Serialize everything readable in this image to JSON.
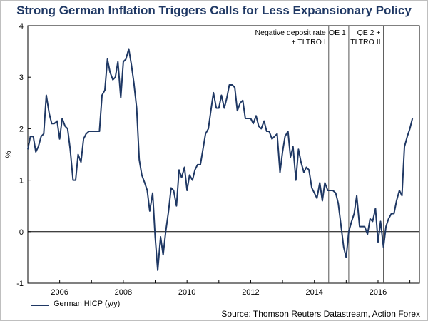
{
  "chart_data": {
    "type": "line",
    "title": "Strong German Inflation Triggers Calls for Less Expansionary Policy",
    "ylabel": "%",
    "xlabel": "",
    "ylim": [
      -1,
      4
    ],
    "xlim": [
      2005.0,
      2017.3
    ],
    "yticks": [
      -1,
      0,
      1,
      2,
      3,
      4
    ],
    "xticks": [
      {
        "label": "2006",
        "value": 2006
      },
      {
        "label": "2008",
        "value": 2008
      },
      {
        "label": "2010",
        "value": 2010
      },
      {
        "label": "2012",
        "value": 2012
      },
      {
        "label": "2014",
        "value": 2014
      },
      {
        "label": "2016",
        "value": 2016
      }
    ],
    "series": [
      {
        "name": "German HICP (y/y)",
        "color": "#1f3864",
        "x": [
          2005.0,
          2005.08,
          2005.17,
          2005.25,
          2005.33,
          2005.42,
          2005.5,
          2005.58,
          2005.67,
          2005.75,
          2005.83,
          2005.92,
          2006.0,
          2006.08,
          2006.17,
          2006.25,
          2006.33,
          2006.42,
          2006.5,
          2006.58,
          2006.67,
          2006.75,
          2006.83,
          2006.92,
          2007.0,
          2007.08,
          2007.17,
          2007.25,
          2007.33,
          2007.42,
          2007.5,
          2007.58,
          2007.67,
          2007.75,
          2007.83,
          2007.92,
          2008.0,
          2008.08,
          2008.17,
          2008.25,
          2008.33,
          2008.42,
          2008.5,
          2008.58,
          2008.67,
          2008.75,
          2008.83,
          2008.92,
          2009.0,
          2009.08,
          2009.17,
          2009.25,
          2009.33,
          2009.42,
          2009.5,
          2009.58,
          2009.67,
          2009.75,
          2009.83,
          2009.92,
          2010.0,
          2010.08,
          2010.17,
          2010.25,
          2010.33,
          2010.42,
          2010.5,
          2010.58,
          2010.67,
          2010.75,
          2010.83,
          2010.92,
          2011.0,
          2011.08,
          2011.17,
          2011.25,
          2011.33,
          2011.42,
          2011.5,
          2011.58,
          2011.67,
          2011.75,
          2011.83,
          2011.92,
          2012.0,
          2012.08,
          2012.17,
          2012.25,
          2012.33,
          2012.42,
          2012.5,
          2012.58,
          2012.67,
          2012.75,
          2012.83,
          2012.92,
          2013.0,
          2013.08,
          2013.17,
          2013.25,
          2013.33,
          2013.42,
          2013.5,
          2013.58,
          2013.67,
          2013.75,
          2013.83,
          2013.92,
          2014.0,
          2014.08,
          2014.17,
          2014.25,
          2014.33,
          2014.42,
          2014.5,
          2014.58,
          2014.67,
          2014.75,
          2014.83,
          2014.92,
          2015.0,
          2015.08,
          2015.17,
          2015.25,
          2015.33,
          2015.42,
          2015.5,
          2015.58,
          2015.67,
          2015.75,
          2015.83,
          2015.92,
          2016.0,
          2016.08,
          2016.17,
          2016.25,
          2016.33,
          2016.42,
          2016.5,
          2016.58,
          2016.67,
          2016.75,
          2016.83,
          2016.92,
          2017.0,
          2017.08
        ],
        "values": [
          1.6,
          1.85,
          1.85,
          1.55,
          1.65,
          1.85,
          1.9,
          2.65,
          2.3,
          2.1,
          2.1,
          2.15,
          1.8,
          2.2,
          2.05,
          2.0,
          1.6,
          1.0,
          1.0,
          1.5,
          1.35,
          1.8,
          1.9,
          1.95,
          1.95,
          1.95,
          1.95,
          1.95,
          2.65,
          2.75,
          3.35,
          3.1,
          2.95,
          3.0,
          3.3,
          2.6,
          3.3,
          3.35,
          3.55,
          3.25,
          2.9,
          2.4,
          1.4,
          1.1,
          0.95,
          0.8,
          0.4,
          0.75,
          -0.1,
          -0.75,
          -0.1,
          -0.45,
          0.0,
          0.4,
          0.85,
          0.8,
          0.5,
          1.2,
          1.05,
          1.25,
          0.8,
          1.1,
          1.0,
          1.2,
          1.3,
          1.3,
          1.6,
          1.9,
          2.0,
          2.35,
          2.7,
          2.4,
          2.4,
          2.65,
          2.4,
          2.6,
          2.85,
          2.85,
          2.8,
          2.35,
          2.5,
          2.55,
          2.2,
          2.2,
          2.2,
          2.1,
          2.25,
          2.05,
          2.0,
          2.15,
          1.95,
          1.95,
          1.8,
          1.85,
          1.9,
          1.15,
          1.55,
          1.85,
          1.95,
          1.45,
          1.65,
          1.0,
          1.6,
          1.35,
          1.15,
          1.25,
          1.2,
          0.85,
          0.75,
          0.65,
          0.95,
          0.6,
          0.95,
          0.8,
          0.8,
          0.8,
          0.75,
          0.55,
          0.15,
          -0.3,
          -0.5,
          0.0,
          0.2,
          0.35,
          0.7,
          0.1,
          0.1,
          0.1,
          -0.05,
          0.25,
          0.2,
          0.45,
          -0.2,
          0.2,
          -0.3,
          0.1,
          0.25,
          0.35,
          0.35,
          0.6,
          0.8,
          0.7,
          1.65,
          1.85,
          2.0,
          2.2
        ]
      }
    ],
    "annotations": [
      {
        "x": 2014.45,
        "label_lines": [
          "Negative deposit rate",
          "+ TLTRO I"
        ]
      },
      {
        "x": 2015.08,
        "label_lines": [
          "QE 1"
        ]
      },
      {
        "x": 2016.17,
        "label_lines": [
          "QE 2 +",
          "TLTRO II"
        ]
      }
    ],
    "reference_line": 0
  },
  "legend": {
    "label": "German HICP (y/y)"
  },
  "source": "Source: Thomson Reuters Datastream, Action Forex"
}
